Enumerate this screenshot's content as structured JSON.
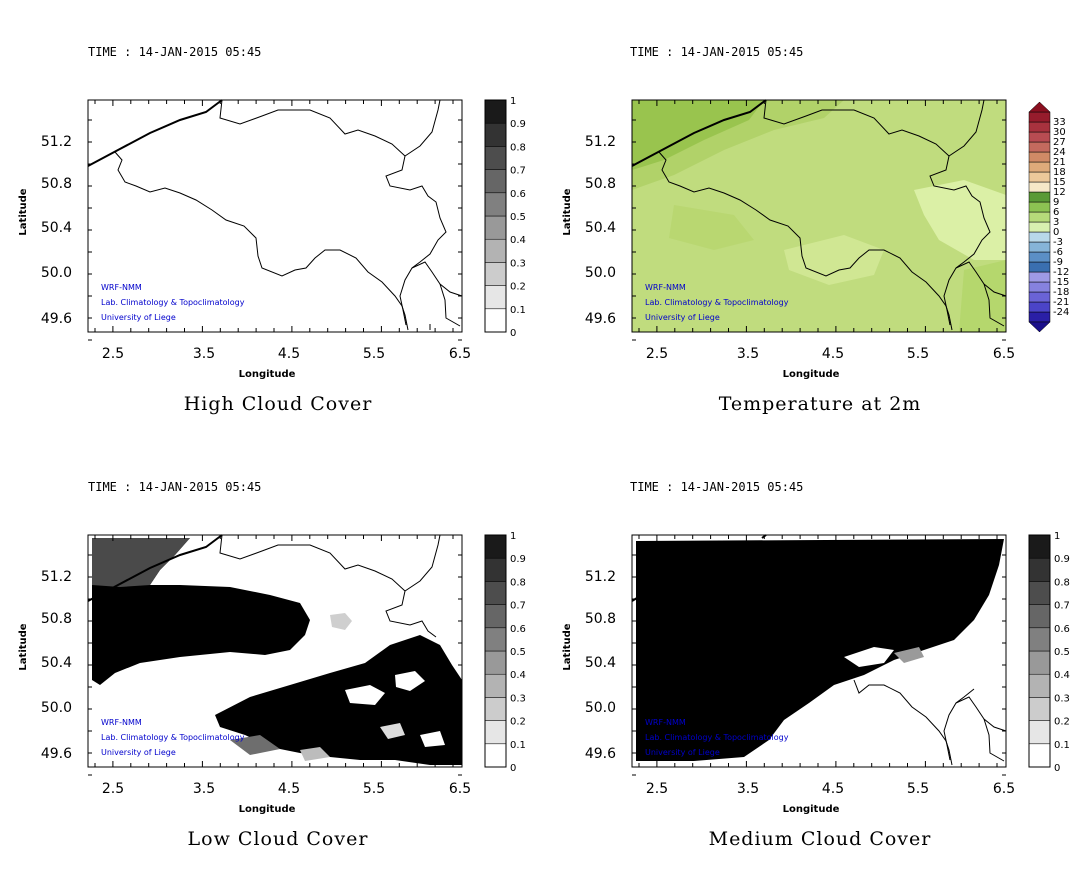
{
  "colors": {
    "credit_text": "#0000cc",
    "temp_field": "#c0dc7e",
    "temp_field_dark": "#8dbd43",
    "temp_field_light": "#dbf0a6"
  },
  "panels": [
    {
      "id": "high",
      "time_label": "TIME : 14-JAN-2015 05:45",
      "title": "High Cloud Cover",
      "xlabel": "Longitude",
      "ylabel": "Latitude",
      "xticks": [
        "2.5",
        "3.5",
        "4.5",
        "5.5",
        "6.5"
      ],
      "yticks": [
        "51.2",
        "50.8",
        "50.4",
        "50.0",
        "49.6"
      ],
      "colorbar": [
        "0",
        "0.1",
        "0.2",
        "0.3",
        "0.4",
        "0.5",
        "0.6",
        "0.7",
        "0.8",
        "0.9",
        "1"
      ],
      "credits": [
        "WRF-NMM",
        "Lab. Climatology & Topoclimatology",
        "University of Liege"
      ]
    },
    {
      "id": "temp",
      "time_label": "TIME : 14-JAN-2015 05:45",
      "title": "Temperature at 2m",
      "xlabel": "Longitude",
      "ylabel": "Latitude",
      "xticks": [
        "2.5",
        "3.5",
        "4.5",
        "5.5",
        "6.5"
      ],
      "yticks": [
        "51.2",
        "50.8",
        "50.4",
        "50.0",
        "49.6"
      ],
      "colorbar": [
        "-24",
        "-21",
        "-18",
        "-15",
        "-12",
        "-9",
        "-6",
        "-3",
        "0",
        "3",
        "6",
        "9",
        "12",
        "15",
        "18",
        "21",
        "24",
        "27",
        "30",
        "33"
      ],
      "credits": [
        "WRF-NMM",
        "Lab. Climatology & Topoclimatology",
        "University of Liege"
      ]
    },
    {
      "id": "low",
      "time_label": "TIME : 14-JAN-2015 05:45",
      "title": "Low Cloud Cover",
      "xlabel": "Longitude",
      "ylabel": "Latitude",
      "xticks": [
        "2.5",
        "3.5",
        "4.5",
        "5.5",
        "6.5"
      ],
      "yticks": [
        "51.2",
        "50.8",
        "50.4",
        "50.0",
        "49.6"
      ],
      "colorbar": [
        "0",
        "0.1",
        "0.2",
        "0.3",
        "0.4",
        "0.5",
        "0.6",
        "0.7",
        "0.8",
        "0.9",
        "1"
      ],
      "credits": [
        "WRF-NMM",
        "Lab. Climatology & Topoclimatology",
        "University of Liege"
      ]
    },
    {
      "id": "medium",
      "time_label": "TIME : 14-JAN-2015 05:45",
      "title": "Medium Cloud Cover",
      "xlabel": "Longitude",
      "ylabel": "Latitude",
      "xticks": [
        "2.5",
        "3.5",
        "4.5",
        "5.5",
        "6.5"
      ],
      "yticks": [
        "51.2",
        "50.8",
        "50.4",
        "50.0",
        "49.6"
      ],
      "colorbar": [
        "0",
        "0.1",
        "0.2",
        "0.3",
        "0.4",
        "0.5",
        "0.6",
        "0.7",
        "0.8",
        "0.9",
        "1"
      ],
      "credits": [
        "WRF-NMM",
        "Lab. Climatology & Topoclimatology",
        "University of Liege"
      ]
    }
  ]
}
